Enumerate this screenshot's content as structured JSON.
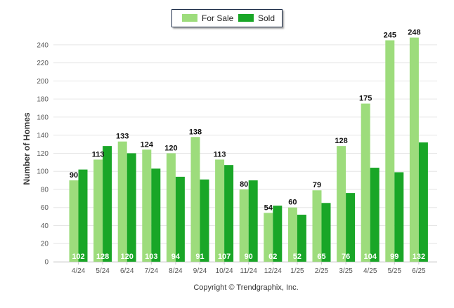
{
  "chart_data": {
    "type": "bar",
    "categories": [
      "4/24",
      "5/24",
      "6/24",
      "7/24",
      "8/24",
      "9/24",
      "10/24",
      "11/24",
      "12/24",
      "1/25",
      "2/25",
      "3/25",
      "4/25",
      "5/25",
      "6/25"
    ],
    "series": [
      {
        "name": "For Sale",
        "color": "#9ddc7c",
        "values": [
          90,
          113,
          133,
          124,
          120,
          138,
          113,
          80,
          54,
          60,
          79,
          128,
          175,
          245,
          248
        ]
      },
      {
        "name": "Sold",
        "color": "#19a627",
        "values": [
          102,
          128,
          120,
          103,
          94,
          91,
          107,
          90,
          62,
          52,
          65,
          76,
          104,
          99,
          132
        ]
      }
    ],
    "ylabel": "Number of Homes",
    "xlabel": "",
    "ylim": [
      0,
      250
    ],
    "yticks": [
      0,
      20,
      40,
      60,
      80,
      100,
      120,
      140,
      160,
      180,
      200,
      220,
      240
    ],
    "grid": true,
    "legend_position": "top-center",
    "footer": "Copyright © Trendgraphix, Inc."
  }
}
